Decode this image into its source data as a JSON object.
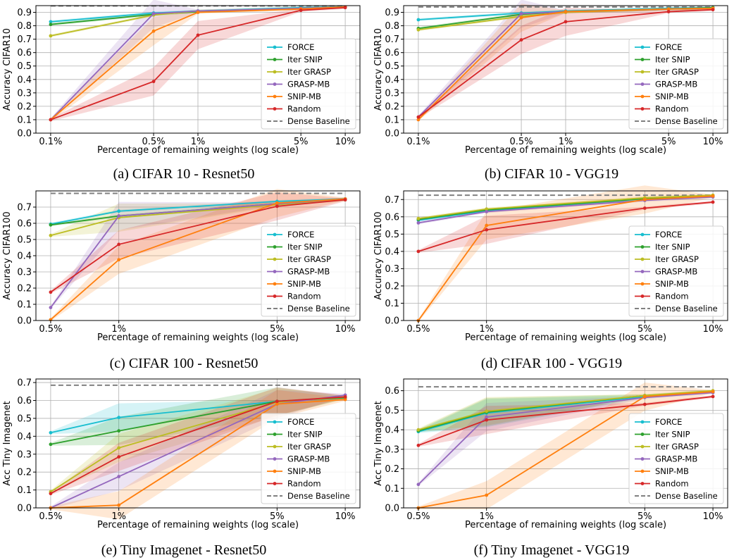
{
  "series_styles": [
    {
      "name": "FORCE",
      "color": "#17becf"
    },
    {
      "name": "Iter SNIP",
      "color": "#2ca02c"
    },
    {
      "name": "Iter GRASP",
      "color": "#bcbd22"
    },
    {
      "name": "GRASP-MB",
      "color": "#9467bd"
    },
    {
      "name": "SNIP-MB",
      "color": "#ff7f0e"
    },
    {
      "name": "Random",
      "color": "#d62728"
    }
  ],
  "baseline_style": {
    "name": "Dense Baseline",
    "color": "#808080"
  },
  "chart_data": [
    {
      "type": "line",
      "caption": "(a) CIFAR 10 - Resnet50",
      "xlabel": "Percentage of remaining weights (log scale)",
      "ylabel": "Accuracy CIFAR10",
      "xscale": "log",
      "x": [
        0.1,
        0.5,
        1,
        5,
        10
      ],
      "xticks": [
        "0.1%",
        "0.5%",
        "1%",
        "5%",
        "10%"
      ],
      "ylim": [
        0,
        0.95
      ],
      "yticks": [
        "0.0",
        "0.1",
        "0.2",
        "0.3",
        "0.4",
        "0.5",
        "0.6",
        "0.7",
        "0.8",
        "0.9"
      ],
      "baseline": 0.948,
      "legend": "lower-right",
      "grid": true,
      "series": [
        {
          "name": "FORCE",
          "values": [
            0.83,
            0.895,
            0.91,
            0.935,
            0.94
          ]
        },
        {
          "name": "Iter SNIP",
          "values": [
            0.81,
            0.885,
            0.905,
            0.93,
            0.94
          ]
        },
        {
          "name": "Iter GRASP",
          "values": [
            0.725,
            0.88,
            0.91,
            0.93,
            0.94
          ]
        },
        {
          "name": "GRASP-MB",
          "values": [
            0.1,
            0.89,
            0.91,
            0.93,
            0.94
          ]
        },
        {
          "name": "SNIP-MB",
          "values": [
            0.1,
            0.76,
            0.9,
            0.925,
            0.94
          ]
        },
        {
          "name": "Random",
          "values": [
            0.1,
            0.385,
            0.73,
            0.915,
            0.935
          ]
        }
      ]
    },
    {
      "type": "line",
      "caption": "(b) CIFAR 10 - VGG19",
      "xlabel": "Percentage of remaining weights (log scale)",
      "ylabel": "Accuracy CIFAR10",
      "xscale": "log",
      "x": [
        0.1,
        0.5,
        1,
        5,
        10
      ],
      "xticks": [
        "0.1%",
        "0.5%",
        "1%",
        "5%",
        "10%"
      ],
      "ylim": [
        0,
        0.95
      ],
      "yticks": [
        "0.0",
        "0.1",
        "0.2",
        "0.3",
        "0.4",
        "0.5",
        "0.6",
        "0.7",
        "0.8",
        "0.9"
      ],
      "baseline": 0.94,
      "legend": "lower-right",
      "grid": true,
      "series": [
        {
          "name": "FORCE",
          "values": [
            0.845,
            0.895,
            0.91,
            0.93,
            0.935
          ]
        },
        {
          "name": "Iter SNIP",
          "values": [
            0.78,
            0.885,
            0.905,
            0.925,
            0.935
          ]
        },
        {
          "name": "Iter GRASP",
          "values": [
            0.77,
            0.87,
            0.9,
            0.925,
            0.93
          ]
        },
        {
          "name": "GRASP-MB",
          "values": [
            0.12,
            0.89,
            0.905,
            0.925,
            0.93
          ]
        },
        {
          "name": "SNIP-MB",
          "values": [
            0.1,
            0.86,
            0.905,
            0.925,
            0.93
          ]
        },
        {
          "name": "Random",
          "values": [
            0.12,
            0.695,
            0.83,
            0.905,
            0.92
          ]
        }
      ]
    },
    {
      "type": "line",
      "caption": "(c) CIFAR 100 - Resnet50",
      "xlabel": "Percentage of remaining weights (log scale)",
      "ylabel": "Accuracy CIFAR100",
      "xscale": "log",
      "x": [
        0.5,
        1,
        5,
        10
      ],
      "xticks": [
        "0.5%",
        "1%",
        "5%",
        "10%"
      ],
      "ylim": [
        0,
        0.8
      ],
      "yticks": [
        "0.0",
        "0.1",
        "0.2",
        "0.3",
        "0.4",
        "0.5",
        "0.6",
        "0.7"
      ],
      "baseline": 0.785,
      "legend": "lower-right",
      "grid": true,
      "series": [
        {
          "name": "FORCE",
          "values": [
            0.595,
            0.675,
            0.735,
            0.75
          ]
        },
        {
          "name": "Iter SNIP",
          "values": [
            0.59,
            0.645,
            0.72,
            0.75
          ]
        },
        {
          "name": "Iter GRASP",
          "values": [
            0.525,
            0.635,
            0.715,
            0.745
          ]
        },
        {
          "name": "GRASP-MB",
          "values": [
            0.08,
            0.645,
            0.72,
            0.75
          ]
        },
        {
          "name": "SNIP-MB",
          "values": [
            0.005,
            0.375,
            0.725,
            0.75
          ]
        },
        {
          "name": "Random",
          "values": [
            0.175,
            0.47,
            0.705,
            0.745
          ]
        }
      ]
    },
    {
      "type": "line",
      "caption": "(d) CIFAR 100 - VGG19",
      "xlabel": "Percentage of remaining weights (log scale)",
      "ylabel": "Accuracy CIFAR100",
      "xscale": "log",
      "x": [
        0.5,
        1,
        5,
        10
      ],
      "xticks": [
        "0.5%",
        "1%",
        "5%",
        "10%"
      ],
      "ylim": [
        0,
        0.75
      ],
      "yticks": [
        "0.0",
        "0.1",
        "0.2",
        "0.3",
        "0.4",
        "0.5",
        "0.6",
        "0.7"
      ],
      "baseline": 0.725,
      "legend": "lower-right",
      "grid": true,
      "series": [
        {
          "name": "FORCE",
          "values": [
            0.58,
            0.635,
            0.705,
            0.72
          ]
        },
        {
          "name": "Iter SNIP",
          "values": [
            0.585,
            0.64,
            0.705,
            0.72
          ]
        },
        {
          "name": "Iter GRASP",
          "values": [
            0.59,
            0.645,
            0.71,
            0.725
          ]
        },
        {
          "name": "GRASP-MB",
          "values": [
            0.565,
            0.63,
            0.695,
            0.715
          ]
        },
        {
          "name": "SNIP-MB",
          "values": [
            0.0,
            0.55,
            0.7,
            0.72
          ]
        },
        {
          "name": "Random",
          "values": [
            0.4,
            0.525,
            0.65,
            0.685
          ]
        }
      ]
    },
    {
      "type": "line",
      "caption": "(e) Tiny Imagenet - Resnet50",
      "xlabel": "Percentage of remaining weights (log scale)",
      "ylabel": "Acc Tiny Imagenet",
      "xscale": "log",
      "x": [
        0.5,
        1,
        5,
        10
      ],
      "xticks": [
        "0.5%",
        "1%",
        "5%",
        "10%"
      ],
      "ylim": [
        0,
        0.72
      ],
      "yticks": [
        "0.0",
        "0.1",
        "0.2",
        "0.3",
        "0.4",
        "0.5",
        "0.6",
        "0.7"
      ],
      "baseline": 0.685,
      "legend": "lower-right",
      "grid": true,
      "series": [
        {
          "name": "FORCE",
          "values": [
            0.42,
            0.505,
            0.595,
            0.615
          ]
        },
        {
          "name": "Iter SNIP",
          "values": [
            0.355,
            0.43,
            0.595,
            0.615
          ]
        },
        {
          "name": "Iter GRASP",
          "values": [
            0.09,
            0.335,
            0.59,
            0.62
          ]
        },
        {
          "name": "GRASP-MB",
          "values": [
            0.0,
            0.175,
            0.58,
            0.63
          ]
        },
        {
          "name": "SNIP-MB",
          "values": [
            0.0,
            0.015,
            0.58,
            0.605
          ]
        },
        {
          "name": "Random",
          "values": [
            0.08,
            0.285,
            0.595,
            0.62
          ]
        }
      ]
    },
    {
      "type": "line",
      "caption": "(f) Tiny Imagenet - VGG19",
      "xlabel": "Percentage of remaining weights (log scale)",
      "ylabel": "Acc Tiny Imagenet",
      "xscale": "log",
      "x": [
        0.5,
        1,
        5,
        10
      ],
      "xticks": [
        "0.5%",
        "1%",
        "5%",
        "10%"
      ],
      "ylim": [
        0,
        0.66
      ],
      "yticks": [
        "0.0",
        "0.1",
        "0.2",
        "0.3",
        "0.4",
        "0.5",
        "0.6"
      ],
      "baseline": 0.62,
      "legend": "lower-right",
      "grid": true,
      "series": [
        {
          "name": "FORCE",
          "values": [
            0.39,
            0.485,
            0.57,
            0.595
          ]
        },
        {
          "name": "Iter SNIP",
          "values": [
            0.395,
            0.49,
            0.575,
            0.595
          ]
        },
        {
          "name": "Iter GRASP",
          "values": [
            0.4,
            0.495,
            0.575,
            0.6
          ]
        },
        {
          "name": "GRASP-MB",
          "values": [
            0.12,
            0.465,
            0.565,
            0.59
          ]
        },
        {
          "name": "SNIP-MB",
          "values": [
            0.0,
            0.065,
            0.57,
            0.595
          ]
        },
        {
          "name": "Random",
          "values": [
            0.32,
            0.45,
            0.53,
            0.57
          ]
        }
      ]
    }
  ]
}
